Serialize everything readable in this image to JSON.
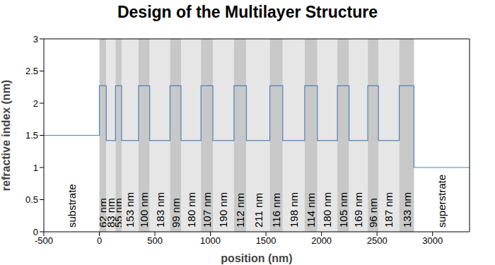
{
  "chart_data": {
    "type": "line",
    "title": "Design of the Multilayer Structure",
    "x_label": "position (nm)",
    "y_label": "refractive index (nm)",
    "xlim": [
      -500,
      3333
    ],
    "xticks": [
      -500,
      0,
      500,
      1000,
      1500,
      2000,
      2500,
      3000
    ],
    "ylim": [
      0,
      3
    ],
    "yticks": [
      0,
      0.5,
      1,
      1.5,
      2,
      2.5,
      3
    ],
    "color": "#4f81bd",
    "substrate": {
      "label": "substrate",
      "n": 1.5
    },
    "superstrate": {
      "label": "superstrate",
      "n": 1
    },
    "layers": [
      {
        "label": "62 nm",
        "thickness": 62,
        "n": 2.27,
        "color": "#c8c8c8"
      },
      {
        "label": "83 nm",
        "thickness": 83,
        "n": 1.42,
        "color": "#e6e6e6"
      },
      {
        "label": "55 nm",
        "thickness": 55,
        "n": 2.27,
        "color": "#c8c8c8"
      },
      {
        "label": "153 nm",
        "thickness": 153,
        "n": 1.42,
        "color": "#e6e6e6"
      },
      {
        "label": "100 nm",
        "thickness": 100,
        "n": 2.27,
        "color": "#c8c8c8"
      },
      {
        "label": "183 nm",
        "thickness": 183,
        "n": 1.42,
        "color": "#e6e6e6"
      },
      {
        "label": "99 nm",
        "thickness": 99,
        "n": 2.27,
        "color": "#c8c8c8"
      },
      {
        "label": "180 nm",
        "thickness": 180,
        "n": 1.42,
        "color": "#e6e6e6"
      },
      {
        "label": "107 nm",
        "thickness": 107,
        "n": 2.27,
        "color": "#c8c8c8"
      },
      {
        "label": "190 nm",
        "thickness": 190,
        "n": 1.42,
        "color": "#e6e6e6"
      },
      {
        "label": "112 nm",
        "thickness": 112,
        "n": 2.27,
        "color": "#c8c8c8"
      },
      {
        "label": "211 nm",
        "thickness": 211,
        "n": 1.42,
        "color": "#e6e6e6"
      },
      {
        "label": "116 nm",
        "thickness": 116,
        "n": 2.27,
        "color": "#c8c8c8"
      },
      {
        "label": "198 nm",
        "thickness": 198,
        "n": 1.42,
        "color": "#e6e6e6"
      },
      {
        "label": "114 nm",
        "thickness": 114,
        "n": 2.27,
        "color": "#c8c8c8"
      },
      {
        "label": "180 nm",
        "thickness": 180,
        "n": 1.42,
        "color": "#e6e6e6"
      },
      {
        "label": "105 nm",
        "thickness": 105,
        "n": 2.27,
        "color": "#c8c8c8"
      },
      {
        "label": "169 nm",
        "thickness": 169,
        "n": 1.42,
        "color": "#e6e6e6"
      },
      {
        "label": "96 nm",
        "thickness": 96,
        "n": 2.27,
        "color": "#c8c8c8"
      },
      {
        "label": "187 nm",
        "thickness": 187,
        "n": 1.42,
        "color": "#e6e6e6"
      },
      {
        "label": "133 nm",
        "thickness": 133,
        "n": 2.27,
        "color": "#c8c8c8"
      }
    ]
  }
}
